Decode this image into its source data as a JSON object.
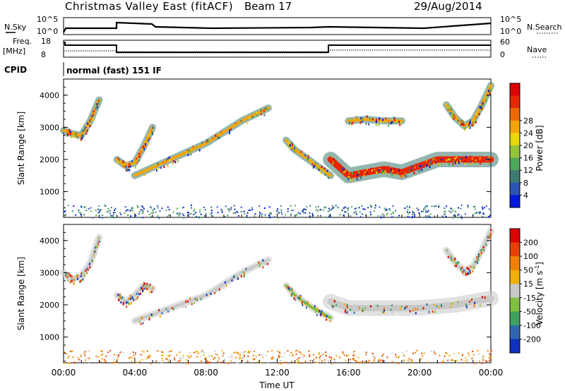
{
  "header": {
    "title": "Christmas Valley East (fitACF)",
    "beam": "Beam 17",
    "date": "29/Aug/2014"
  },
  "status_panels": {
    "nsky_label": "N.Sky",
    "nsky_ticks": [
      "10^5",
      "10^0"
    ],
    "nsearch_label": "N.Search",
    "nsearch_ticks": [
      "10^5",
      "10^0"
    ],
    "freq_label_1": "Freq.",
    "freq_label_2": "[MHz]",
    "freq_ticks": [
      "18",
      "8"
    ],
    "nave_label": "Nave",
    "nave_ticks": [
      "60",
      "0"
    ],
    "cpid_label": "CPID",
    "cpid_value": "normal (fast) 151 IF"
  },
  "chart_data": [
    {
      "type": "heatmap",
      "name": "power",
      "ylabel": "Slant Range [km]",
      "ylim": [
        200,
        4500
      ],
      "yticks": [
        "1000",
        "2000",
        "3000",
        "4000"
      ],
      "colorbar_label": "Power [dB]",
      "colorbar_ticks": [
        "4",
        "8",
        "12",
        "16",
        "20",
        "24",
        "28"
      ],
      "colorbar_colors": [
        "#0018e0",
        "#2855b5",
        "#3d7a70",
        "#4ea85a",
        "#93c43a",
        "#e8d800",
        "#f5a500",
        "#ee6a00",
        "#e82600",
        "#e00000"
      ],
      "traces": [
        {
          "x": [
            0.0,
            0.5,
            1.0,
            1.5,
            2.0
          ],
          "y": [
            2900,
            2800,
            2750,
            3200,
            3850
          ]
        },
        {
          "x": [
            3.0,
            3.5,
            4.0,
            4.5,
            5.0
          ],
          "y": [
            2000,
            1800,
            1900,
            2400,
            3000
          ]
        },
        {
          "x": [
            4.0,
            6.0,
            8.0,
            10.0,
            11.5
          ],
          "y": [
            1500,
            2000,
            2500,
            3200,
            3600
          ]
        },
        {
          "x": [
            12.5,
            13.0,
            14.0,
            15.0
          ],
          "y": [
            2600,
            2300,
            1900,
            1500
          ]
        },
        {
          "x": [
            15.0,
            16.0,
            17.0,
            18.0,
            19.0,
            20.0,
            21.0,
            22.0,
            23.0,
            24.0
          ],
          "y": [
            2000,
            1500,
            1600,
            1700,
            1600,
            1800,
            2000,
            2000,
            2000,
            2000
          ]
        },
        {
          "x": [
            16.0,
            17.0,
            18.0,
            19.0
          ],
          "y": [
            3200,
            3250,
            3200,
            3200
          ]
        },
        {
          "x": [
            21.5,
            22.0,
            22.5,
            23.0,
            23.5,
            24.0
          ],
          "y": [
            3700,
            3300,
            3050,
            3200,
            3700,
            4300
          ]
        }
      ]
    },
    {
      "type": "heatmap",
      "name": "velocity",
      "xlabel": "Time UT",
      "ylabel": "Slant Range [km]",
      "ylim": [
        200,
        4500
      ],
      "yticks": [
        "1000",
        "2000",
        "3000",
        "4000"
      ],
      "xticks": [
        "00:00",
        "04:00",
        "08:00",
        "12:00",
        "16:00",
        "20:00",
        "00:00"
      ],
      "colorbar_label": "Velocity [m s",
      "colorbar_label_sup": "-1",
      "colorbar_label_end": "]",
      "colorbar_ticks": [
        "200",
        "100",
        "50",
        "15",
        "-15",
        "-50",
        "-100",
        "-200"
      ],
      "colorbar_colors": [
        "#1030c0",
        "#3068b0",
        "#40a060",
        "#80c040",
        "#c8c8c8",
        "#f0b000",
        "#f08000",
        "#e84000",
        "#e00000"
      ],
      "traces": [
        {
          "x": [
            0.0,
            0.5,
            1.0,
            1.5,
            2.0
          ],
          "y": [
            3000,
            2800,
            2900,
            3300,
            4100
          ]
        },
        {
          "x": [
            3.0,
            3.5,
            4.0,
            4.5,
            5.0
          ],
          "y": [
            2300,
            2100,
            2300,
            2600,
            2500
          ]
        },
        {
          "x": [
            4.0,
            6.0,
            8.0,
            10.0,
            11.5
          ],
          "y": [
            1500,
            1900,
            2300,
            3000,
            3400
          ]
        },
        {
          "x": [
            12.5,
            13.0,
            14.0,
            15.0
          ],
          "y": [
            2600,
            2300,
            1900,
            1600
          ]
        },
        {
          "x": [
            15.0,
            16.0,
            18.0,
            20.0,
            22.0,
            24.0
          ],
          "y": [
            2100,
            1900,
            1900,
            1900,
            2000,
            2200
          ]
        },
        {
          "x": [
            21.5,
            22.0,
            22.5,
            23.0,
            23.5,
            24.0
          ],
          "y": [
            3700,
            3300,
            3050,
            3200,
            3700,
            4300
          ]
        }
      ]
    }
  ]
}
